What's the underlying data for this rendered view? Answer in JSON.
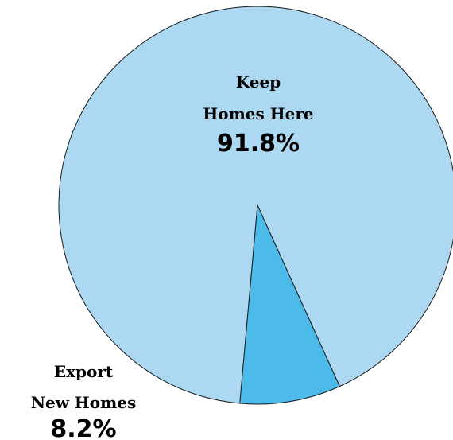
{
  "chart_data": {
    "type": "pie",
    "slices": [
      {
        "label_lines": [
          "Keep",
          "Homes Here"
        ],
        "value_label": "91.8%",
        "value": 91.8,
        "color": "#ADD8F2"
      },
      {
        "label_lines": [
          "Export",
          "New Homes"
        ],
        "value_label": "8.2%",
        "value": 8.2,
        "color": "#4DBBE9"
      }
    ],
    "outline_color": "#1a1a1a"
  }
}
